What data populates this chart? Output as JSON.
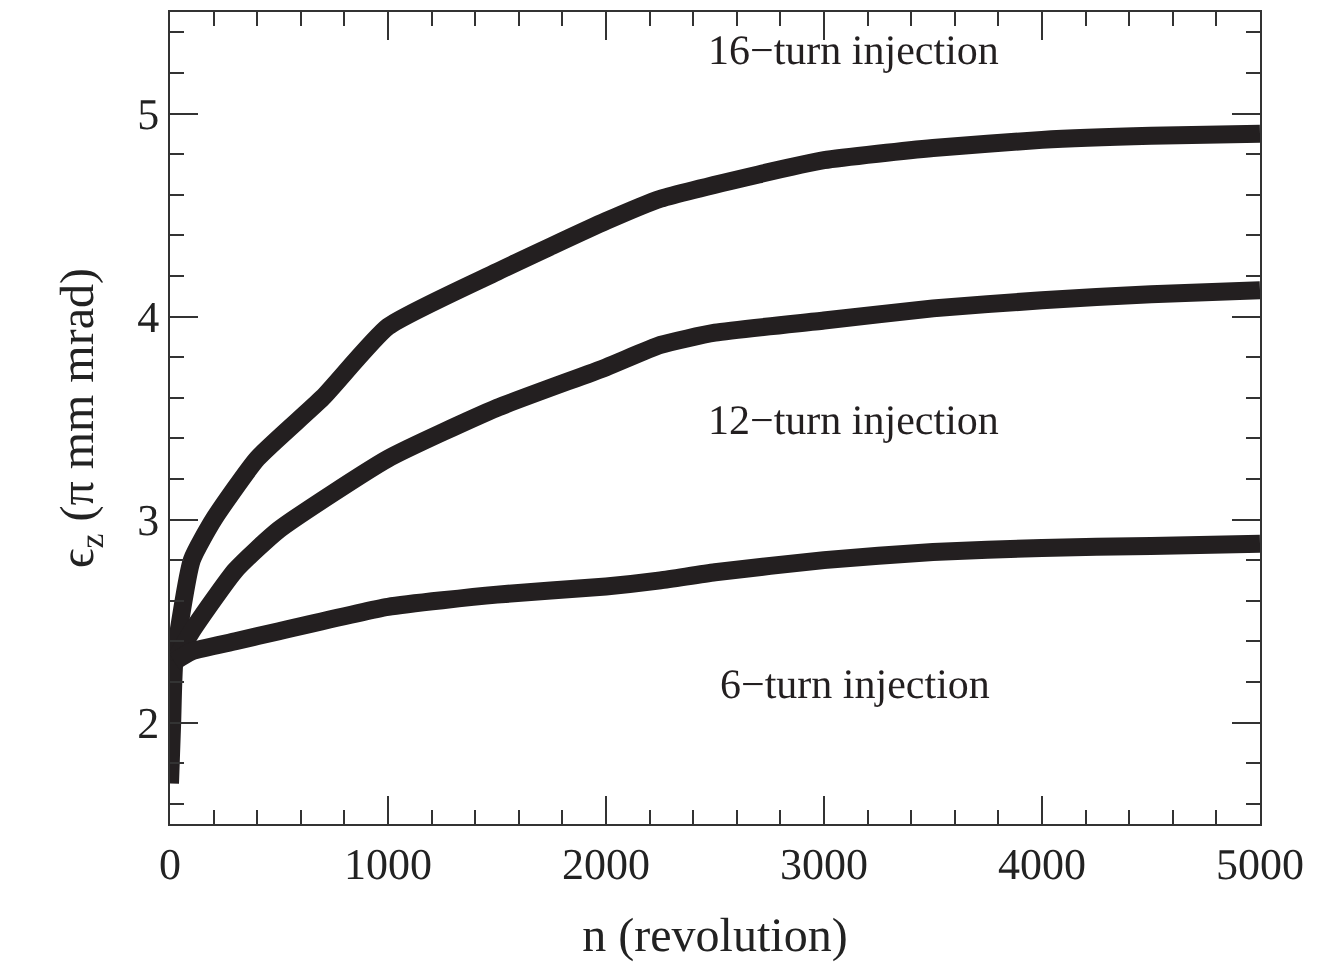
{
  "chart_data": {
    "type": "line",
    "xlabel": "n (revolution)",
    "ylabel": "ϵ$_{z}$ (π mm mrad)",
    "xlim": [
      0,
      5000
    ],
    "ylim": [
      1.5,
      5.5
    ],
    "xticks": [
      0,
      {
        "value": 200,
        "label": null
      },
      {
        "value": 400,
        "label": null
      },
      {
        "value": 600,
        "label": null
      },
      {
        "value": 800,
        "label": null
      },
      1000,
      {
        "value": 1200,
        "label": null
      },
      {
        "value": 1400,
        "label": null
      },
      {
        "value": 1600,
        "label": null
      },
      {
        "value": 1800,
        "label": null
      },
      2000,
      {
        "value": 2200,
        "label": null
      },
      {
        "value": 2400,
        "label": null
      },
      {
        "value": 2600,
        "label": null
      },
      {
        "value": 2800,
        "label": null
      },
      3000,
      {
        "value": 3200,
        "label": null
      },
      {
        "value": 3400,
        "label": null
      },
      {
        "value": 3600,
        "label": null
      },
      {
        "value": 3800,
        "label": null
      },
      4000,
      {
        "value": 4200,
        "label": null
      },
      {
        "value": 4400,
        "label": null
      },
      {
        "value": 4600,
        "label": null
      },
      {
        "value": 4800,
        "label": null
      },
      5000
    ],
    "yticks": [
      {
        "value": 1.6,
        "label": null
      },
      {
        "value": 1.8,
        "label": null
      },
      2,
      {
        "value": 2.2,
        "label": null
      },
      {
        "value": 2.4,
        "label": null
      },
      {
        "value": 2.6,
        "label": null
      },
      {
        "value": 2.8,
        "label": null
      },
      3,
      {
        "value": 3.2,
        "label": null
      },
      {
        "value": 3.4,
        "label": null
      },
      {
        "value": 3.6,
        "label": null
      },
      {
        "value": 3.8,
        "label": null
      },
      4,
      {
        "value": 4.2,
        "label": null
      },
      {
        "value": 4.4,
        "label": null
      },
      {
        "value": 4.6,
        "label": null
      },
      {
        "value": 4.8,
        "label": null
      },
      5,
      {
        "value": 5.2,
        "label": null
      },
      {
        "value": 5.4,
        "label": null
      }
    ],
    "legend": false,
    "marker": "none",
    "line_style": "solid",
    "series": [
      {
        "name": "16−turn injection",
        "color": "#231f20",
        "x": [
          0,
          10,
          20,
          100,
          200,
          400,
          700,
          1000,
          1500,
          2000,
          2250,
          2700,
          3000,
          3500,
          4000,
          4500,
          5000
        ],
        "values": [
          1.7,
          2.0,
          2.3,
          2.8,
          3.0,
          3.3,
          3.6,
          3.95,
          4.22,
          4.47,
          4.58,
          4.7,
          4.77,
          4.83,
          4.87,
          4.89,
          4.9
        ]
      },
      {
        "name": "12−turn injection",
        "color": "#231f20",
        "x": [
          20,
          100,
          300,
          500,
          1000,
          1500,
          2000,
          2250,
          2500,
          3000,
          3500,
          4000,
          4500,
          5000
        ],
        "values": [
          2.3,
          2.45,
          2.75,
          2.95,
          3.3,
          3.55,
          3.75,
          3.86,
          3.92,
          3.98,
          4.04,
          4.08,
          4.11,
          4.13
        ]
      },
      {
        "name": "6−turn injection",
        "color": "#231f20",
        "x": [
          20,
          100,
          300,
          500,
          1000,
          1500,
          2000,
          2250,
          2500,
          3000,
          3500,
          4000,
          4500,
          5000
        ],
        "values": [
          2.3,
          2.35,
          2.4,
          2.45,
          2.57,
          2.63,
          2.67,
          2.7,
          2.74,
          2.8,
          2.84,
          2.86,
          2.87,
          2.88
        ]
      }
    ]
  }
}
